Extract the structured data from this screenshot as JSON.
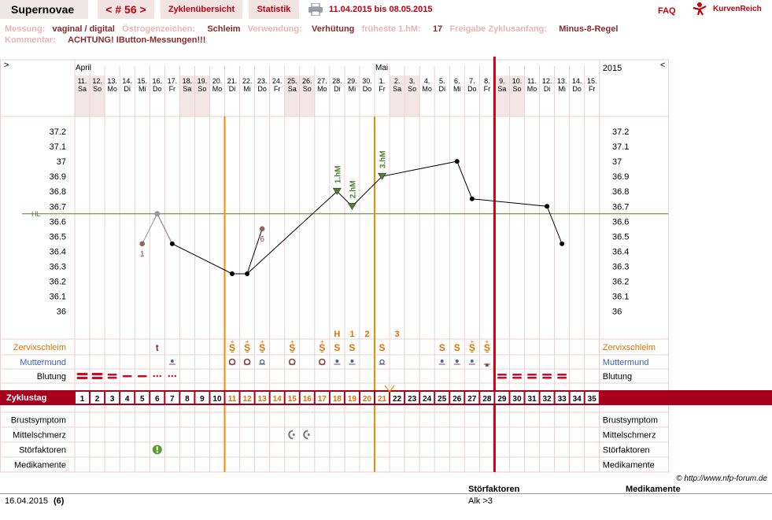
{
  "header": {
    "title": "Supernovae",
    "cycle_nav": "< # 56 >",
    "tab_overview": "Zyklenübersicht",
    "tab_stats": "Statistik",
    "date_range": "11.04.2015 bis 08.05.2015",
    "faq": "FAQ",
    "brand": "KurvenReich"
  },
  "info": {
    "messung_label": "Messung:",
    "messung": "vaginal / digital",
    "oestrogen_label": "Östrogenzeichen:",
    "oestrogen": "Schleim",
    "verwendung_label": "Verwendung:",
    "verwendung": "Verhütung",
    "fhm_label": "früheste 1.hM:",
    "fhm": "17",
    "freigabe_label": "Freigabe Zyklusanfang:",
    "freigabe": "Minus-8-Regel",
    "kommentar_label": "Kommentar:",
    "kommentar": "ACHTUNG! IButton-Messungen!!!"
  },
  "colors": {
    "accent": "#c0000e",
    "weekend_bg": "#f3e6e6",
    "grid": "#e6d2d2",
    "orange": "#f08c00",
    "blue": "#4060c0",
    "green": "#508030",
    "zyklustag_bg": "#a8001c"
  },
  "chart_data": {
    "type": "line",
    "year": "2015",
    "nav_left": ">",
    "nav_right": "<",
    "months": [
      {
        "label": "April",
        "at": 0
      },
      {
        "label": "Mai",
        "at": 20
      }
    ],
    "days": [
      {
        "d": "11.",
        "w": "Sa",
        "we": true
      },
      {
        "d": "12.",
        "w": "So",
        "we": true
      },
      {
        "d": "13.",
        "w": "Mo"
      },
      {
        "d": "14.",
        "w": "Di"
      },
      {
        "d": "15.",
        "w": "Mi"
      },
      {
        "d": "16.",
        "w": "Do"
      },
      {
        "d": "17.",
        "w": "Fr"
      },
      {
        "d": "18.",
        "w": "Sa",
        "we": true
      },
      {
        "d": "19.",
        "w": "So",
        "we": true
      },
      {
        "d": "20.",
        "w": "Mo"
      },
      {
        "d": "21.",
        "w": "Di"
      },
      {
        "d": "22.",
        "w": "Mi"
      },
      {
        "d": "23.",
        "w": "Do"
      },
      {
        "d": "24.",
        "w": "Fr"
      },
      {
        "d": "25.",
        "w": "Sa",
        "we": true
      },
      {
        "d": "26.",
        "w": "So",
        "we": true
      },
      {
        "d": "27.",
        "w": "Mo"
      },
      {
        "d": "28.",
        "w": "Di"
      },
      {
        "d": "29.",
        "w": "Mi"
      },
      {
        "d": "30.",
        "w": "Do"
      },
      {
        "d": "1.",
        "w": "Fr"
      },
      {
        "d": "2.",
        "w": "Sa",
        "we": true
      },
      {
        "d": "3.",
        "w": "So",
        "we": true
      },
      {
        "d": "4.",
        "w": "Mo"
      },
      {
        "d": "5.",
        "w": "Di"
      },
      {
        "d": "6.",
        "w": "Mi"
      },
      {
        "d": "7.",
        "w": "Do"
      },
      {
        "d": "8.",
        "w": "Fr"
      },
      {
        "d": "9.",
        "w": "Sa",
        "we": true
      },
      {
        "d": "10.",
        "w": "So",
        "we": true
      },
      {
        "d": "11.",
        "w": "Mo"
      },
      {
        "d": "12.",
        "w": "Di"
      },
      {
        "d": "13.",
        "w": "Mi"
      },
      {
        "d": "14.",
        "w": "Do"
      },
      {
        "d": "15.",
        "w": "Fr"
      }
    ],
    "y_ticks": [
      "37.2",
      "37.1",
      "37",
      "36.9",
      "36.8",
      "36.7",
      "36.6",
      "36.5",
      "36.4",
      "36.3",
      "36.2",
      "36.1",
      "36"
    ],
    "ylim": [
      36.0,
      37.2
    ],
    "hl_value": 36.65,
    "hl_label": "HL",
    "temps": [
      {
        "day": 5,
        "v": 36.45,
        "kind": "excluded",
        "label": "1"
      },
      {
        "day": 6,
        "v": 36.65,
        "kind": "gray"
      },
      {
        "day": 7,
        "v": 36.45
      },
      {
        "day": 11,
        "v": 36.25
      },
      {
        "day": 12,
        "v": 36.25
      },
      {
        "day": 13,
        "v": 36.55,
        "kind": "excluded",
        "label": "6"
      },
      {
        "day": 18,
        "v": 36.8,
        "kind": "hm",
        "hm": "1.hM"
      },
      {
        "day": 19,
        "v": 36.7,
        "kind": "hm",
        "hm": "2.hM"
      },
      {
        "day": 21,
        "v": 36.9,
        "kind": "hm",
        "hm": "3.hM"
      },
      {
        "day": 26,
        "v": 37.0
      },
      {
        "day": 27,
        "v": 36.75
      },
      {
        "day": 32,
        "v": 36.7
      },
      {
        "day": 33,
        "v": 36.45
      }
    ],
    "orange_lines": [
      11,
      21
    ],
    "red_line": 28,
    "zervix_top": [
      {
        "day": 18,
        "t": "H"
      },
      {
        "day": 19,
        "t": "1"
      },
      {
        "day": 20,
        "t": "2"
      },
      {
        "day": 22,
        "t": "3"
      }
    ],
    "zervix": [
      {
        "day": 6,
        "t": "t",
        "c": "#8a2a2a"
      },
      {
        "day": 11,
        "t": "S̱",
        "sup": "+"
      },
      {
        "day": 12,
        "t": "S̱",
        "sup": "+"
      },
      {
        "day": 13,
        "t": "S̱",
        "sup": "+"
      },
      {
        "day": 15,
        "t": "S̱",
        "sup": "+"
      },
      {
        "day": 17,
        "t": "S̱",
        "sup": "+"
      },
      {
        "day": 18,
        "t": "S"
      },
      {
        "day": 19,
        "t": "S"
      },
      {
        "day": 21,
        "t": "S"
      },
      {
        "day": 25,
        "t": "S"
      },
      {
        "day": 26,
        "t": "S"
      },
      {
        "day": 27,
        "t": "S̱",
        "sup": "+"
      },
      {
        "day": 28,
        "t": "S̱",
        "sup": "+"
      }
    ],
    "muttermund": [
      {
        "day": 7,
        "k": "dot"
      },
      {
        "day": 11,
        "k": "ring"
      },
      {
        "day": 12,
        "k": "ring"
      },
      {
        "day": 13,
        "k": "ringsmall"
      },
      {
        "day": 15,
        "k": "ring"
      },
      {
        "day": 17,
        "k": "ring"
      },
      {
        "day": 18,
        "k": "dot"
      },
      {
        "day": 19,
        "k": "dot"
      },
      {
        "day": 21,
        "k": "ringsmall"
      },
      {
        "day": 25,
        "k": "dot"
      },
      {
        "day": 26,
        "k": "dot"
      },
      {
        "day": 27,
        "k": "dot"
      },
      {
        "day": 28,
        "k": "dotlow"
      }
    ],
    "blutung": [
      {
        "day": 1,
        "k": "heavy"
      },
      {
        "day": 2,
        "k": "heavy"
      },
      {
        "day": 3,
        "k": "medium"
      },
      {
        "day": 4,
        "k": "light"
      },
      {
        "day": 5,
        "k": "light"
      },
      {
        "day": 6,
        "k": "spot"
      },
      {
        "day": 7,
        "k": "spot"
      },
      {
        "day": 29,
        "k": "medium"
      },
      {
        "day": 30,
        "k": "medium"
      },
      {
        "day": 31,
        "k": "medium"
      },
      {
        "day": 32,
        "k": "medium"
      },
      {
        "day": 33,
        "k": "medium"
      }
    ],
    "zyklustag_label": "Zyklustag",
    "zyklustage": [
      "1",
      "2",
      "3",
      "4",
      "5",
      "6",
      "7",
      "8",
      "9",
      "10",
      "11",
      "12",
      "13",
      "14",
      "15",
      "16",
      "17",
      "18",
      "19",
      "20",
      "21",
      "22",
      "23",
      "24",
      "25",
      "26",
      "27",
      "28",
      "29",
      "30",
      "31",
      "32",
      "33",
      "34",
      "35"
    ],
    "fertile_range": [
      11,
      21
    ],
    "rows_upper": [
      "Zervixschleim",
      "Muttermund",
      "Blutung"
    ],
    "rows_lower": [
      "Brustsymptom",
      "Mittelschmerz",
      "Störfaktoren",
      "Medikamente"
    ],
    "mittelschmerz_days": [
      15,
      16
    ],
    "stoerfaktor_days": [
      6
    ]
  },
  "footer": {
    "copyright": "© http://www.nfp-forum.de",
    "col_stoer": "Störfaktoren",
    "col_medi": "Medikamente",
    "date": "16.04.2015",
    "day": "(6)",
    "stoer_value": "Alk >3"
  }
}
